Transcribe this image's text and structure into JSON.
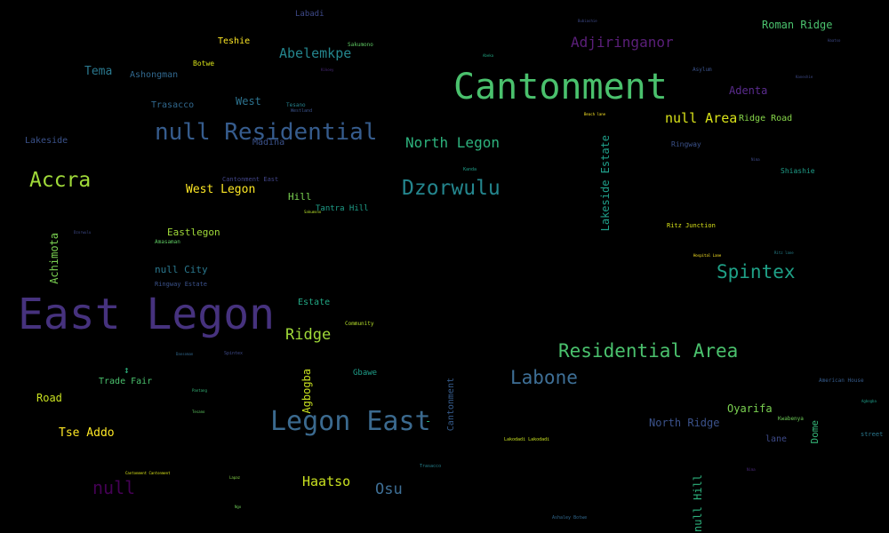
{
  "words": [
    {
      "text": "East Legon",
      "color": "#46327e"
    },
    {
      "text": "Cantonment",
      "color": "#4ac16d"
    },
    {
      "text": "null Residential",
      "color": "#365c8d"
    },
    {
      "text": "Legon East",
      "color": "#3b6a8f"
    },
    {
      "text": "Dzorwulu",
      "color": "#24868e"
    },
    {
      "text": "Residential Area",
      "color": "#4ac16d"
    },
    {
      "text": "Accra",
      "color": "#a0da39"
    },
    {
      "text": "Labone",
      "color": "#3e6f96"
    },
    {
      "text": "Spintex",
      "color": "#1fa187"
    },
    {
      "text": "Adjiringanor",
      "color": "#5b1f7a"
    },
    {
      "text": "North Legon",
      "color": "#2db27d"
    },
    {
      "text": "Abelemkpe",
      "color": "#24868e"
    },
    {
      "text": "null Area",
      "color": "#d8e219"
    },
    {
      "text": "null",
      "color": "#440154"
    },
    {
      "text": "Ridge",
      "color": "#a0da39"
    },
    {
      "text": "Osu",
      "color": "#3e6f96"
    },
    {
      "text": "Haatso",
      "color": "#c8e020"
    },
    {
      "text": "West Legon",
      "color": "#fde725"
    },
    {
      "text": "Tema",
      "color": "#2a788e"
    },
    {
      "text": "Tse Addo",
      "color": "#fde725"
    },
    {
      "text": "Adenta",
      "color": "#5b2c8f"
    },
    {
      "text": "Roman Ridge",
      "color": "#4ac16d"
    },
    {
      "text": "Oyarifa",
      "color": "#7ad151"
    },
    {
      "text": "North Ridge",
      "color": "#3b528b"
    },
    {
      "text": "Eastlegon",
      "color": "#a0da39"
    },
    {
      "text": "null City",
      "color": "#2a788e"
    },
    {
      "text": "Ashongman",
      "color": "#31688e"
    },
    {
      "text": "West",
      "color": "#2c728e"
    },
    {
      "text": "Hill",
      "color": "#7ad151"
    },
    {
      "text": "Road",
      "color": "#c8e020"
    },
    {
      "text": "Trade Fair",
      "color": "#4ac16d"
    },
    {
      "text": "Trasacco",
      "color": "#31688e"
    },
    {
      "text": "Lakeside",
      "color": "#3b528b"
    },
    {
      "text": "Ridge Road",
      "color": "#86d549"
    },
    {
      "text": "Teshie",
      "color": "#fde725"
    },
    {
      "text": "Estate",
      "color": "#22a884"
    },
    {
      "text": "lane",
      "color": "#3e4a89"
    },
    {
      "text": "Madina",
      "color": "#3b528b"
    },
    {
      "text": "Tantra Hill",
      "color": "#1f9e89"
    },
    {
      "text": "Gbawe",
      "color": "#1f9e89"
    },
    {
      "text": "Shiashie",
      "color": "#1f9e89"
    },
    {
      "text": "Botwe",
      "color": "#d8e219"
    },
    {
      "text": "Labadi",
      "color": "#3e4a89"
    },
    {
      "text": "Ringway",
      "color": "#3b528b"
    },
    {
      "text": "Ringway Estate",
      "color": "#3b528b"
    },
    {
      "text": "Cantonment East",
      "color": "#414487"
    },
    {
      "text": "Amasaman",
      "color": "#5ec962"
    },
    {
      "text": "Sakumono",
      "color": "#5ec962"
    },
    {
      "text": "Tesano",
      "color": "#26828e"
    },
    {
      "text": "Community",
      "color": "#b5de2b"
    },
    {
      "text": "Asylum",
      "color": "#3b528b"
    },
    {
      "text": "Ritz Junction",
      "color": "#d8e219"
    },
    {
      "text": "street",
      "color": "#2a788e"
    },
    {
      "text": "American House",
      "color": "#365c8d"
    },
    {
      "text": "Kwabenya",
      "color": "#6ece58"
    },
    {
      "text": "Westland",
      "color": "#3b528b"
    },
    {
      "text": "Lakodadi Lakodadi",
      "color": "#c8e020"
    },
    {
      "text": "Cantonment Cantonment",
      "color": "#d8e219"
    },
    {
      "text": "Trasacco",
      "color": "#26828e"
    },
    {
      "text": "Sakumono",
      "color": "#b5de2b"
    },
    {
      "text": "Kikoey",
      "color": "#482878"
    },
    {
      "text": "Abeka",
      "color": "#22a884"
    },
    {
      "text": "Kanda",
      "color": "#1f9e89"
    },
    {
      "text": "Pantang",
      "color": "#35b779"
    },
    {
      "text": "Tesano",
      "color": "#5ec962"
    },
    {
      "text": "Spintex",
      "color": "#3e4a89"
    },
    {
      "text": "Dansoman",
      "color": "#31688e"
    },
    {
      "text": "Ashaley Botwe",
      "color": "#31688e"
    },
    {
      "text": "Hospital Lane",
      "color": "#fde725"
    },
    {
      "text": "Beach lane",
      "color": "#fde725"
    },
    {
      "text": "Kaneshie",
      "color": "#3e4a89"
    },
    {
      "text": "Haatso",
      "color": "#3e4a89"
    },
    {
      "text": "Bubiashie",
      "color": "#3e4a89"
    },
    {
      "text": "Ritz lane",
      "color": "#26828e"
    },
    {
      "text": "Nima",
      "color": "#3e4a89"
    },
    {
      "text": "Dzorwulu",
      "color": "#3e4a89"
    },
    {
      "text": "Lapaz",
      "color": "#86d549"
    },
    {
      "text": "Nima",
      "color": "#482878"
    },
    {
      "text": "Agbogba",
      "color": "#1f9e89"
    },
    {
      "text": "Ngo",
      "color": "#6ece58"
    },
    {
      "text": "Lakeside Estate",
      "color": "#1f9e89"
    },
    {
      "text": "Agbogba",
      "color": "#c8e020"
    },
    {
      "text": "Cantonment",
      "color": "#365c8d"
    },
    {
      "text": "Achimota",
      "color": "#7ad151"
    },
    {
      "text": "null Hill",
      "color": "#2db27d"
    },
    {
      "text": "Dome",
      "color": "#35b779"
    },
    {
      "text": "↕",
      "color": "#2db27d"
    },
    {
      "text": "-",
      "color": "#2db27d"
    }
  ]
}
